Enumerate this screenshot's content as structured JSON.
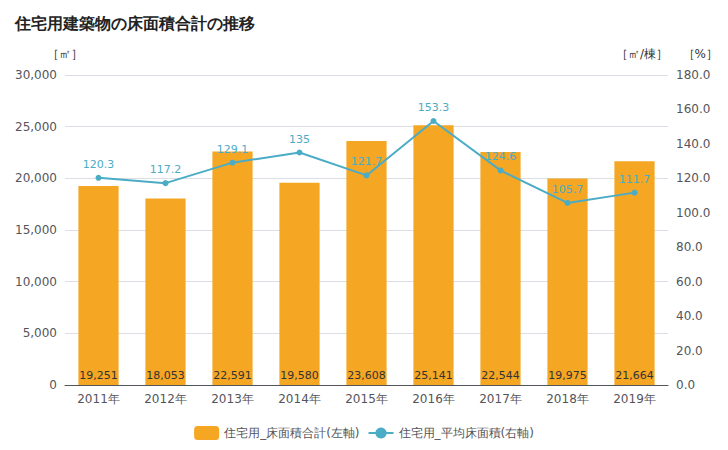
{
  "chart_data": {
    "type": "bar",
    "title": "住宅用建築物の床面積合計の推移",
    "ylabel": "［㎡］",
    "y2label": "［㎡/棟］",
    "annotations": [
      "［%］"
    ],
    "categories": [
      "2011年",
      "2012年",
      "2013年",
      "2014年",
      "2015年",
      "2016年",
      "2017年",
      "2018年",
      "2019年"
    ],
    "series": [
      {
        "name": "住宅用_床面積合計(左軸)",
        "type": "bar",
        "color": "#F5A623",
        "values": [
          19251,
          18053,
          22591,
          19580,
          23608,
          25141,
          22544,
          19975,
          21664
        ],
        "value_labels": [
          "19,251",
          "18,053",
          "22,591",
          "19,580",
          "23,608",
          "25,141",
          "22,544",
          "19,975",
          "21,664"
        ],
        "data_labels": true
      },
      {
        "name": "住宅用_平均床面積(右軸)",
        "type": "line",
        "axis": "y2",
        "color": "#4BACC6",
        "marker": "circle",
        "values": [
          120.3,
          117.2,
          129.1,
          135.0,
          121.7,
          153.3,
          124.6,
          105.7,
          111.7
        ],
        "data_labels": true
      }
    ],
    "ylim": [
      0,
      30000
    ],
    "yticks": [
      0,
      {
        "value": 5000,
        "label": "5,000"
      },
      {
        "value": 10000,
        "label": "10,000"
      },
      {
        "value": 15000,
        "label": "15,000"
      },
      {
        "value": 20000,
        "label": "20,000"
      },
      {
        "value": 25000,
        "label": "25,000"
      },
      {
        "value": 30000,
        "label": "30,000"
      }
    ],
    "y2lim": [
      0,
      180.0
    ],
    "y2ticks": [
      {
        "value": 0,
        "label": "0.0"
      },
      {
        "value": 20,
        "label": "20.0"
      },
      {
        "value": 40,
        "label": "40.0"
      },
      {
        "value": 60,
        "label": "60.0"
      },
      {
        "value": 80,
        "label": "80.0"
      },
      {
        "value": 100,
        "label": "100.0"
      },
      {
        "value": 120,
        "label": "120.0"
      },
      {
        "value": 140,
        "label": "140.0"
      },
      {
        "value": 160,
        "label": "160.0"
      },
      {
        "value": 180,
        "label": "180.0"
      }
    ],
    "grid": true,
    "legend": "bottom"
  }
}
